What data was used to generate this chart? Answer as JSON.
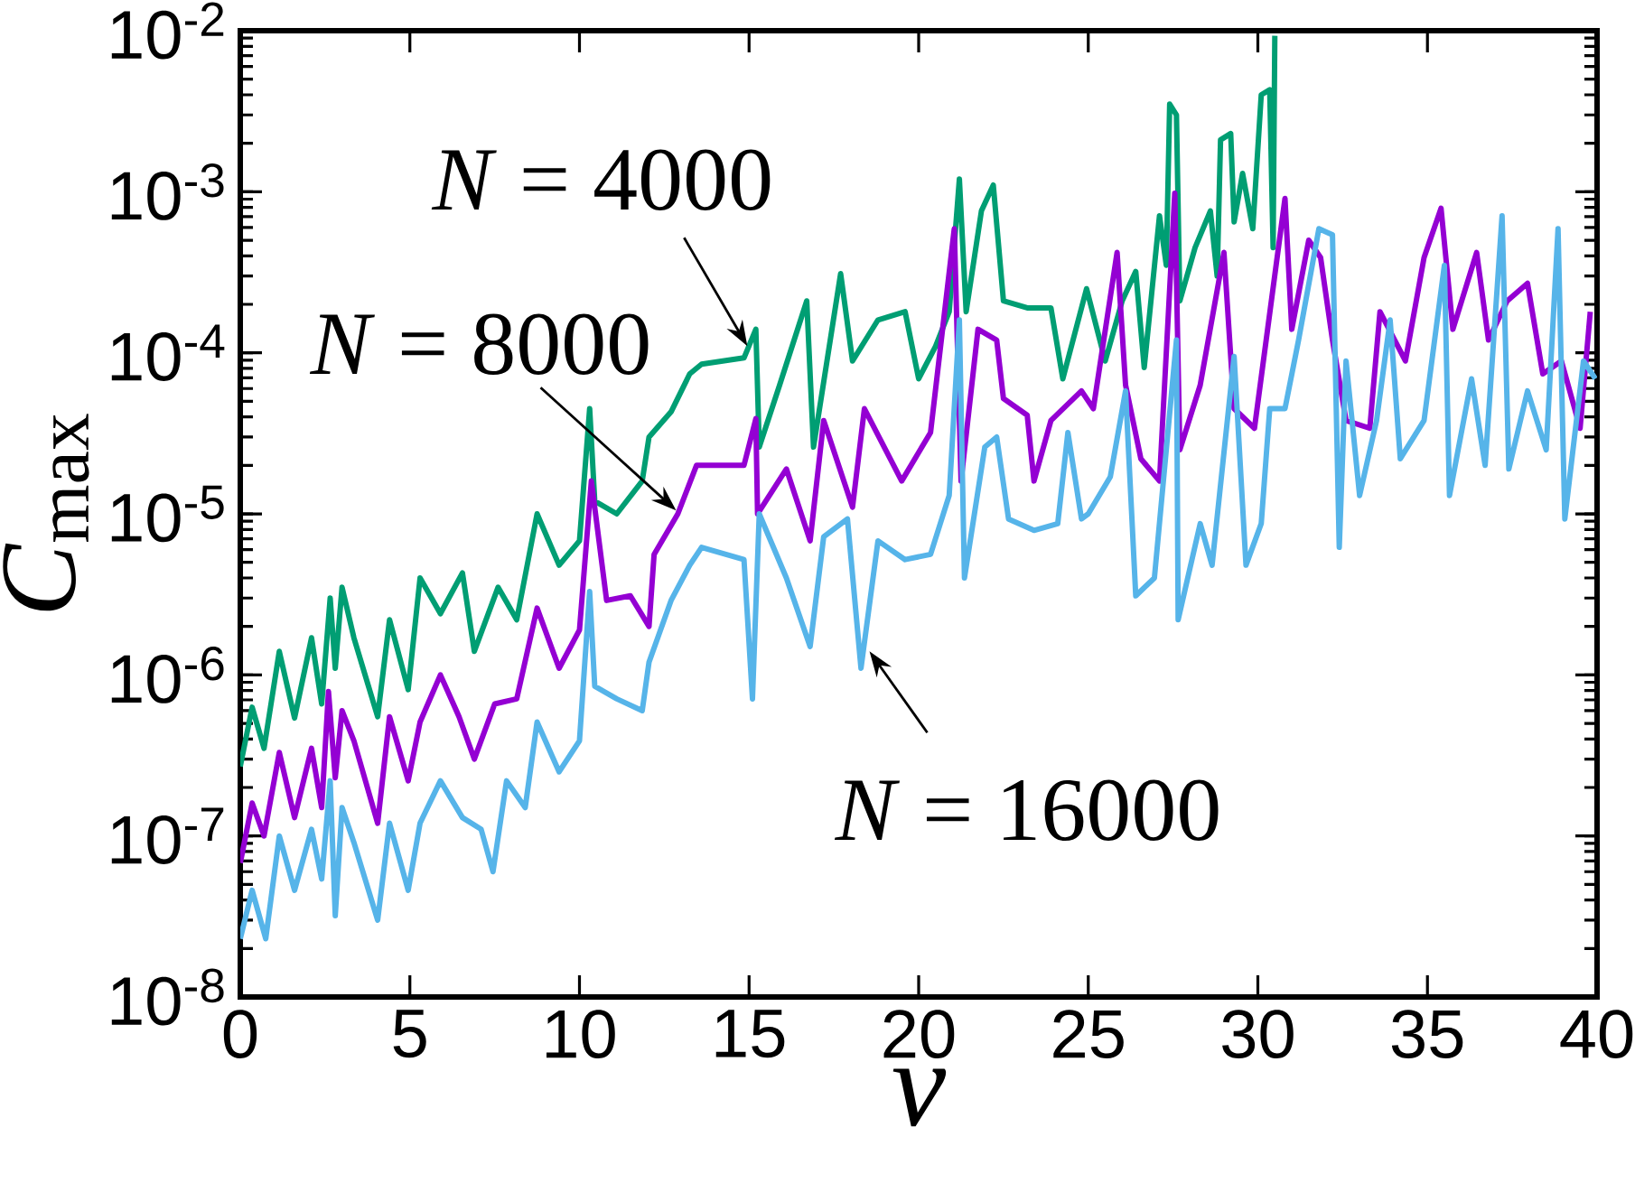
{
  "chart_data": {
    "type": "line",
    "xlabel": "*v*",
    "ylabel": "*C*$_{max}$",
    "log": "y",
    "line_style": "solid",
    "xlim": [
      0,
      40
    ],
    "xticks": [
      0,
      5,
      10,
      15,
      20,
      25,
      30,
      35,
      40
    ],
    "ylim": [
      1e-08,
      0.01
    ],
    "yticks": [
      {
        "value": 1e-08,
        "label": "10$^{-8}$"
      },
      {
        "value": 1e-07,
        "label": "10$^{-7}$"
      },
      {
        "value": 1e-06,
        "label": "10$^{-6}$"
      },
      {
        "value": 1e-05,
        "label": "10$^{-5}$"
      },
      {
        "value": 0.0001,
        "label": "10$^{-4}$"
      },
      {
        "value": 0.001,
        "label": "10$^{-3}$"
      },
      {
        "value": 0.01,
        "label": "10$^{-2}$"
      }
    ],
    "annotations": [
      {
        "text": "*N* = 4000",
        "x": 14.95,
        "y": 0.00011
      },
      {
        "text": "*N* = 8000",
        "x": 12.85,
        "y": 1.05e-05
      },
      {
        "text": "*N* = 16000",
        "x": 18.55,
        "y": 1.4e-06
      }
    ],
    "series": [
      {
        "color": "#009e73",
        "x": [
          0,
          0.35,
          0.7,
          1.15,
          1.6,
          2.1,
          2.4,
          2.65,
          2.8,
          3.0,
          3.35,
          4.05,
          4.4,
          4.95,
          5.3,
          5.9,
          6.55,
          6.9,
          7.6,
          8.15,
          8.75,
          9.4,
          10.0,
          10.3,
          10.45,
          11.1,
          11.85,
          12.05,
          12.7,
          13.25,
          13.6,
          14.85,
          15.2,
          15.3,
          15.9,
          16.7,
          16.9,
          17.7,
          18.05,
          18.8,
          19.6,
          20.0,
          20.5,
          20.9,
          21.2,
          21.4,
          21.85,
          22.2,
          22.5,
          23.2,
          23.9,
          24.25,
          24.95,
          25.5,
          26.0,
          26.4,
          26.65,
          27.1,
          27.3,
          27.4,
          27.6,
          27.7,
          28.15,
          28.6,
          28.8,
          28.9,
          29.2,
          29.3,
          29.55,
          29.85,
          30.1,
          30.35,
          30.45,
          30.5
        ],
        "values": [
          2.7e-07,
          6.3e-07,
          3.5e-07,
          1.4e-06,
          5.4e-07,
          1.7e-06,
          6.6e-07,
          3e-06,
          1.1e-06,
          3.5e-06,
          1.7e-06,
          5.5e-07,
          2.2e-06,
          8.1e-07,
          4e-06,
          2.4e-06,
          4.3e-06,
          1.4e-06,
          3.5e-06,
          2.2e-06,
          1e-05,
          4.8e-06,
          6.8e-06,
          4.5e-05,
          1.2e-05,
          1e-05,
          1.6e-05,
          3e-05,
          4.3e-05,
          7.4e-05,
          8.5e-05,
          9.3e-05,
          0.00014,
          2.6e-05,
          6.3e-05,
          0.00021,
          2.6e-05,
          0.00031,
          8.9e-05,
          0.00016,
          0.00018,
          6.9e-05,
          0.00011,
          0.00018,
          0.0012,
          0.00018,
          0.00076,
          0.0011,
          0.00021,
          0.00019,
          0.00019,
          6.9e-05,
          0.00025,
          8.9e-05,
          0.00021,
          0.00032,
          8.1e-05,
          0.00071,
          0.00035,
          0.0035,
          0.003,
          0.00021,
          0.00045,
          0.00076,
          0.0003,
          0.0021,
          0.0023,
          0.00065,
          0.0013,
          0.00059,
          0.004,
          0.0043,
          0.00045,
          0.0093
        ]
      },
      {
        "color": "#9400d3",
        "x": [
          0,
          0.35,
          0.7,
          1.15,
          1.6,
          2.1,
          2.4,
          2.6,
          2.8,
          3.0,
          3.35,
          4.05,
          4.4,
          4.95,
          5.3,
          5.9,
          6.45,
          6.9,
          7.5,
          8.15,
          8.75,
          9.4,
          10.0,
          10.35,
          10.8,
          11.5,
          12.05,
          12.2,
          12.9,
          13.45,
          14.85,
          15.2,
          15.25,
          16.1,
          16.8,
          17.2,
          18.05,
          18.4,
          19.5,
          20.35,
          21.05,
          21.25,
          21.75,
          22.3,
          22.5,
          23.2,
          23.4,
          23.9,
          24.8,
          25.15,
          25.85,
          26.1,
          26.55,
          27.1,
          27.55,
          27.7,
          28.3,
          29.0,
          29.3,
          29.9,
          30.8,
          31.0,
          31.5,
          31.85,
          32.2,
          32.6,
          33.3,
          33.6,
          34.35,
          34.9,
          35.4,
          35.75,
          36.45,
          36.8,
          37.35,
          37.95,
          38.4,
          38.95,
          39.5,
          39.8
        ],
        "values": [
          6.8e-08,
          1.6e-07,
          1e-07,
          3.3e-07,
          1.3e-07,
          3.5e-07,
          1.5e-07,
          7.9e-07,
          2.3e-07,
          6e-07,
          3.9e-07,
          1.2e-07,
          5.5e-07,
          2.2e-07,
          5.1e-07,
          1e-06,
          5.5e-07,
          3e-07,
          6.6e-07,
          7.1e-07,
          2.6e-06,
          1.1e-06,
          1.9e-06,
          1.6e-05,
          2.9e-06,
          3.1e-06,
          2e-06,
          5.6e-06,
          1e-05,
          2e-05,
          2e-05,
          3.9e-05,
          1e-05,
          1.9e-05,
          6.8e-06,
          3.8e-05,
          1.1e-05,
          4.5e-05,
          1.6e-05,
          3.2e-05,
          0.00059,
          1.6e-05,
          0.00014,
          0.00012,
          5.2e-05,
          4.1e-05,
          1.6e-05,
          3.8e-05,
          5.8e-05,
          4.5e-05,
          0.00042,
          6.3e-05,
          2.2e-05,
          1.6e-05,
          0.00098,
          2.5e-05,
          6.3e-05,
          0.00042,
          4.5e-05,
          3.4e-05,
          0.00091,
          0.00014,
          0.0005,
          0.00039,
          0.00012,
          3.8e-05,
          3.4e-05,
          0.00018,
          8.9e-05,
          0.00039,
          0.00079,
          0.00014,
          0.00042,
          0.00012,
          0.00021,
          0.00027,
          7.4e-05,
          8.9e-05,
          3.4e-05,
          0.00018
        ]
      },
      {
        "color": "#56b4e9",
        "x": [
          0,
          0.35,
          0.75,
          1.15,
          1.6,
          2.1,
          2.4,
          2.65,
          2.8,
          3.0,
          3.35,
          4.05,
          4.4,
          4.95,
          5.3,
          5.9,
          6.55,
          7.1,
          7.45,
          7.85,
          8.4,
          8.75,
          9.4,
          10.0,
          10.3,
          10.45,
          11.1,
          11.85,
          12.05,
          12.7,
          13.25,
          13.6,
          14.85,
          15.1,
          15.3,
          16.1,
          16.8,
          17.2,
          17.9,
          18.3,
          18.8,
          19.6,
          20.35,
          20.9,
          21.2,
          21.35,
          21.95,
          22.3,
          22.65,
          23.4,
          24.1,
          24.4,
          24.8,
          25.0,
          25.65,
          26.1,
          26.4,
          26.95,
          27.6,
          27.65,
          28.3,
          28.65,
          29.3,
          29.65,
          30.1,
          30.35,
          30.8,
          31.2,
          31.8,
          32.2,
          32.4,
          32.6,
          33.0,
          33.5,
          33.9,
          34.2,
          34.9,
          35.5,
          35.65,
          36.3,
          36.7,
          37.2,
          37.4,
          37.95,
          38.5,
          38.85,
          39.05,
          39.6,
          39.95
        ],
        "values": [
          2.3e-08,
          4.6e-08,
          2.3e-08,
          1e-07,
          4.6e-08,
          1.1e-07,
          5.4e-08,
          2.2e-07,
          3.2e-08,
          1.5e-07,
          9.1e-08,
          3e-08,
          1.2e-07,
          4.6e-08,
          1.2e-07,
          2.2e-07,
          1.3e-07,
          1.1e-07,
          6e-08,
          2.2e-07,
          1.5e-07,
          5.1e-07,
          2.5e-07,
          3.9e-07,
          3.3e-06,
          8.5e-07,
          7.1e-07,
          6e-07,
          1.2e-06,
          2.9e-06,
          4.8e-06,
          6.2e-06,
          5.2e-06,
          7.1e-07,
          1e-05,
          4e-06,
          1.5e-06,
          7.2e-06,
          9.3e-06,
          1.1e-06,
          6.8e-06,
          5.2e-06,
          5.6e-06,
          1.3e-05,
          0.00016,
          4e-06,
          2.6e-05,
          3e-05,
          9.3e-06,
          7.9e-06,
          8.7e-06,
          3.2e-05,
          9.3e-06,
          1e-05,
          1.7e-05,
          5.8e-05,
          3.1e-06,
          4e-06,
          0.00012,
          2.2e-06,
          8.7e-06,
          4.8e-06,
          9.5e-05,
          4.8e-06,
          8.7e-06,
          4.5e-05,
          4.5e-05,
          0.00012,
          0.00059,
          0.00054,
          6.2e-06,
          8.9e-05,
          1.3e-05,
          3.8e-05,
          0.00016,
          2.2e-05,
          3.8e-05,
          0.00035,
          1.3e-05,
          6.9e-05,
          2e-05,
          0.00071,
          1.9e-05,
          5.8e-05,
          2.5e-05,
          0.00059,
          9.3e-06,
          8.9e-05,
          6.9e-05
        ]
      }
    ]
  }
}
